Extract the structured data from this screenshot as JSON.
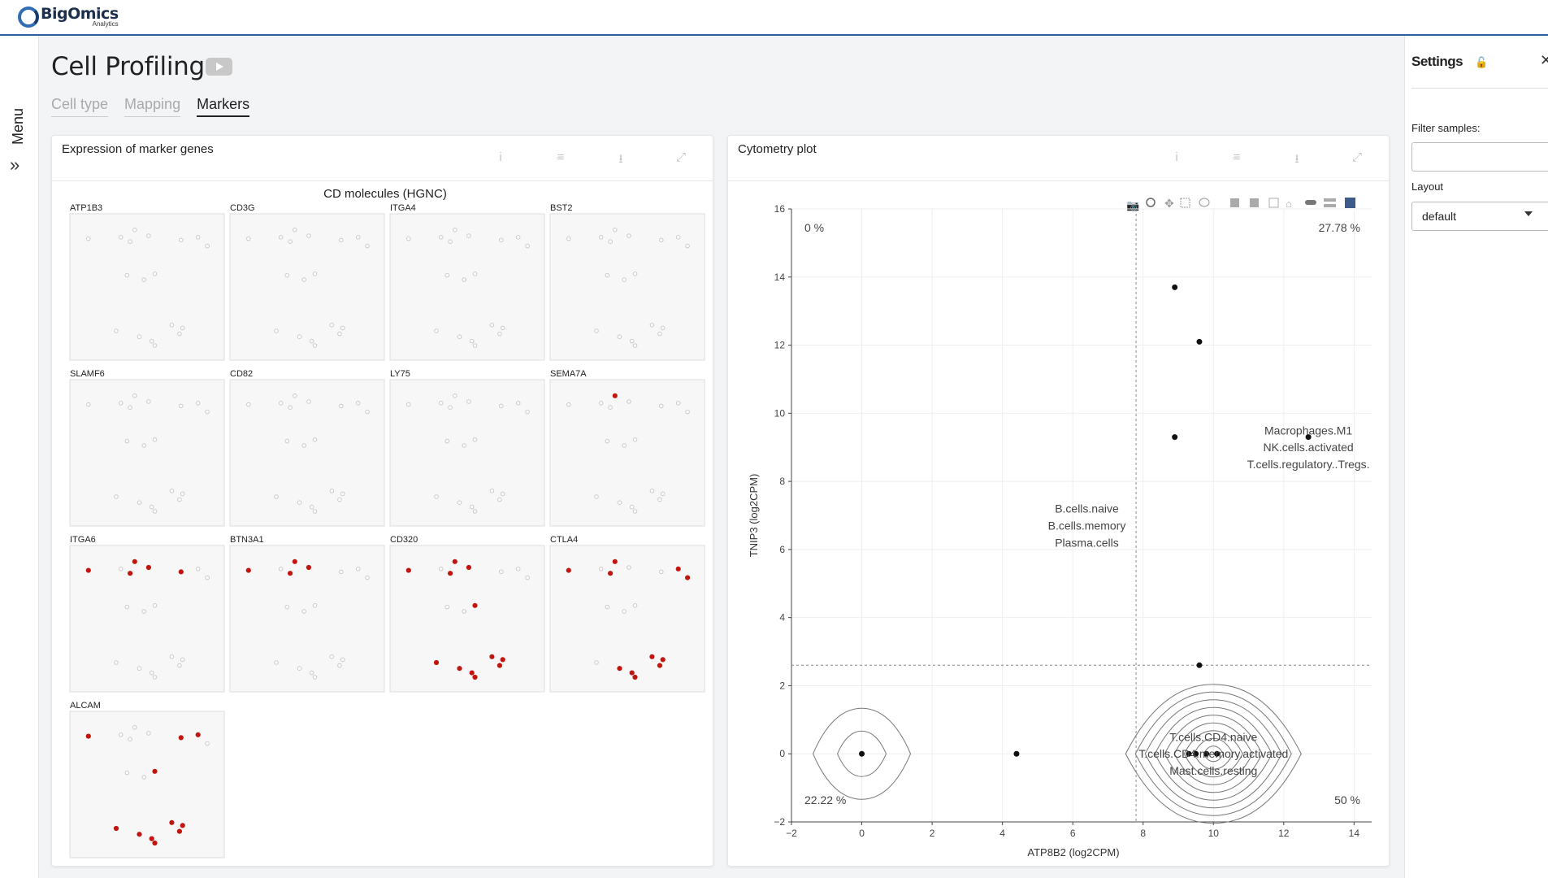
{
  "brand": {
    "name": "BigOmics",
    "sub": "Analytics"
  },
  "nav": {
    "menu_label": "Menu",
    "expand_icon": "double-chevron-right"
  },
  "page": {
    "title": "Cell Profiling"
  },
  "tabs": [
    {
      "label": "Cell type",
      "active": false
    },
    {
      "label": "Mapping",
      "active": false
    },
    {
      "label": "Markers",
      "active": true
    }
  ],
  "cards": {
    "markers": {
      "title": "Expression of marker genes"
    },
    "cytometry": {
      "title": "Cytometry plot"
    }
  },
  "settings": {
    "title": "Settings",
    "filter_label": "Filter samples:",
    "filter_value": "",
    "layout_label": "Layout",
    "layout_value": "default"
  },
  "chart_data": [
    {
      "type": "scatter",
      "title": "CD molecules (HGNC)",
      "panels": [
        "ATP1B3",
        "CD3G",
        "ITGA4",
        "BST2",
        "SLAMF6",
        "CD82",
        "LY75",
        "SEMA7A",
        "ITGA6",
        "BTN3A1",
        "CD320",
        "CTLA4",
        "ALCAM"
      ],
      "highlight_color": "#c0160f",
      "base_color": "#c9c9c9",
      "highlighted_points": {
        "SEMA7A": [
          3
        ],
        "ITGA6": [
          0,
          2,
          3,
          4,
          5
        ],
        "BTN3A1": [
          0,
          2,
          3,
          4
        ],
        "CD320": [
          0,
          2,
          3,
          4,
          10,
          11,
          12,
          13,
          14,
          15,
          16,
          17
        ],
        "CTLA4": [
          0,
          2,
          3,
          6,
          7,
          12,
          13,
          14,
          15,
          16,
          17
        ],
        "ALCAM": [
          0,
          5,
          6,
          10,
          11,
          12,
          13,
          14,
          15,
          16,
          17
        ]
      }
    },
    {
      "type": "scatter",
      "title": "",
      "xlabel": "ATP8B2   (log2CPM)",
      "ylabel": "TNIP3   (log2CPM)",
      "xlim": [
        -2,
        14.5
      ],
      "ylim": [
        -2,
        16
      ],
      "xticks": [
        -2,
        0,
        2,
        4,
        6,
        8,
        10,
        12,
        14
      ],
      "yticks": [
        -2,
        0,
        2,
        4,
        6,
        8,
        10,
        12,
        14,
        16
      ],
      "threshold_x": 7.8,
      "threshold_y": 2.6,
      "points": [
        {
          "x": 0,
          "y": 0
        },
        {
          "x": 4.4,
          "y": 0
        },
        {
          "x": 9.3,
          "y": 0
        },
        {
          "x": 9.5,
          "y": 0
        },
        {
          "x": 9.8,
          "y": 0
        },
        {
          "x": 10.1,
          "y": 0
        },
        {
          "x": 8.9,
          "y": 13.7
        },
        {
          "x": 9.6,
          "y": 12.1
        },
        {
          "x": 8.9,
          "y": 9.3
        },
        {
          "x": 12.7,
          "y": 9.3
        },
        {
          "x": 9.6,
          "y": 2.6
        }
      ],
      "quadrant_labels": {
        "top_left": "0 %",
        "top_right": "27.78 %",
        "bottom_left": "22.22 %",
        "bottom_right": "50 %"
      },
      "annotations": [
        {
          "x": 6.4,
          "y": 7.2,
          "text": "B.cells.naive"
        },
        {
          "x": 6.4,
          "y": 6.7,
          "text": "B.cells.memory"
        },
        {
          "x": 6.4,
          "y": 6.2,
          "text": "Plasma.cells"
        },
        {
          "x": 12.7,
          "y": 9.5,
          "text": "Macrophages.M1"
        },
        {
          "x": 12.7,
          "y": 9.0,
          "text": "NK.cells.activated"
        },
        {
          "x": 12.7,
          "y": 8.5,
          "text": "T.cells.regulatory..Tregs."
        },
        {
          "x": 10.0,
          "y": 0.5,
          "text": "T.cells.CD4.naive"
        },
        {
          "x": 10.0,
          "y": 0.0,
          "text": "T.cells.CD4.memory.activated"
        },
        {
          "x": 10.0,
          "y": -0.5,
          "text": "Mast.cells.resting"
        }
      ],
      "contours": [
        {
          "cx": 0,
          "cy": 0,
          "levels": 2
        },
        {
          "cx": 10,
          "cy": 0,
          "levels": 9
        }
      ]
    }
  ]
}
